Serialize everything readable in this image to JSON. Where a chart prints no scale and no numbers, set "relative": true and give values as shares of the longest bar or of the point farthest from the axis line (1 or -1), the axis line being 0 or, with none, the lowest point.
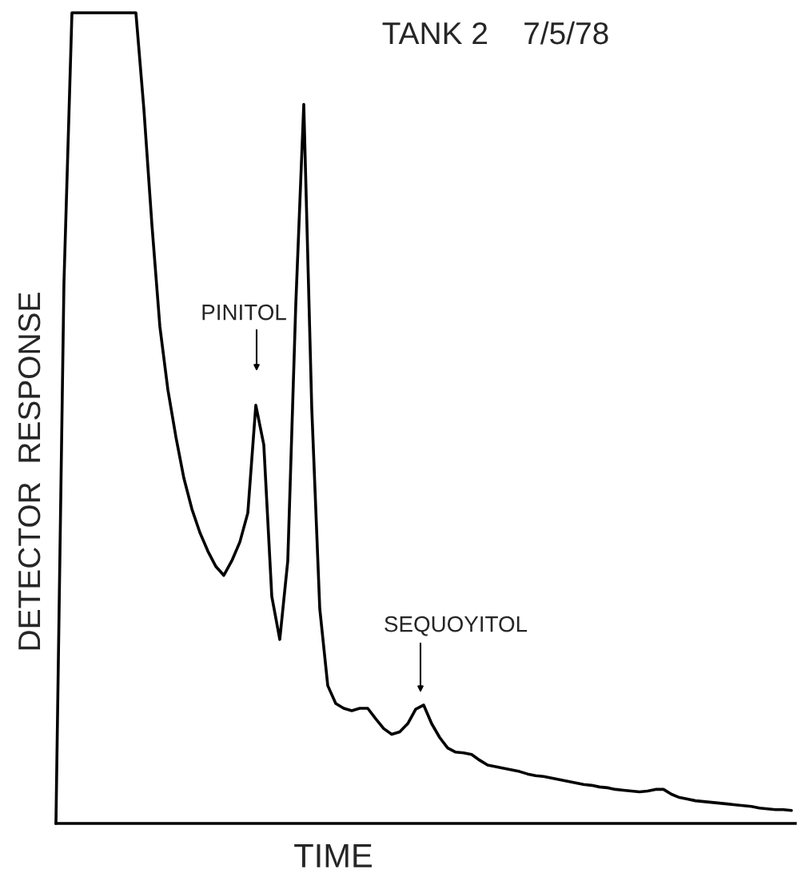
{
  "chart_data": {
    "type": "line",
    "title": "TANK 2    7/5/78",
    "xlabel": "TIME",
    "ylabel": "DETECTOR  RESPONSE",
    "relative": true,
    "categories": [
      null,
      null,
      null,
      null,
      null,
      null,
      null,
      null,
      null,
      null,
      null,
      null,
      null,
      null,
      null,
      null,
      null,
      null,
      null,
      null,
      null,
      null,
      null,
      null,
      null,
      null,
      null,
      null,
      null,
      null,
      null,
      null,
      null,
      null,
      null,
      null,
      null,
      null,
      null,
      null,
      null,
      null,
      null,
      null,
      null,
      null,
      null,
      null,
      null,
      null,
      null,
      null,
      null,
      null,
      null,
      null,
      null,
      null,
      null,
      null,
      null,
      null,
      null,
      null,
      null,
      null,
      null,
      null,
      null,
      null,
      null,
      null,
      null,
      null,
      null,
      null,
      null,
      null,
      null,
      null,
      null,
      null,
      null,
      null,
      null,
      null,
      null,
      null,
      null,
      null,
      null,
      null,
      null
    ],
    "series": [
      {
        "color": "#000000",
        "values": [
          0,
          0.667,
          1,
          1,
          1,
          1,
          1,
          1,
          1,
          1,
          1,
          0.881,
          0.739,
          0.613,
          0.535,
          0.477,
          0.426,
          0.388,
          0.359,
          0.336,
          0.317,
          0.306,
          0.324,
          0.347,
          0.383,
          0.516,
          0.467,
          0.28,
          0.227,
          0.324,
          0.64,
          0.887,
          0.512,
          0.265,
          0.17,
          0.148,
          0.142,
          0.139,
          0.142,
          0.142,
          0.129,
          0.117,
          0.11,
          0.113,
          0.123,
          0.141,
          0.146,
          0.123,
          0.106,
          0.093,
          0.088,
          0.087,
          0.085,
          0.078,
          0.072,
          0.07,
          0.068,
          0.066,
          0.064,
          0.061,
          0.059,
          0.058,
          0.056,
          0.054,
          0.052,
          0.05,
          0.048,
          0.047,
          0.045,
          0.044,
          0.042,
          0.041,
          0.04,
          0.039,
          0.04,
          0.042,
          0.042,
          0.036,
          0.032,
          0.03,
          0.028,
          0.027,
          0.026,
          0.025,
          0.024,
          0.023,
          0.022,
          0.021,
          0.019,
          0.018,
          0.017,
          0.017,
          0.016
        ]
      }
    ],
    "annotations": [
      "PINITOL",
      "SEQUOYITOL"
    ],
    "grid": false,
    "marker": "none",
    "line_style": "solid"
  }
}
